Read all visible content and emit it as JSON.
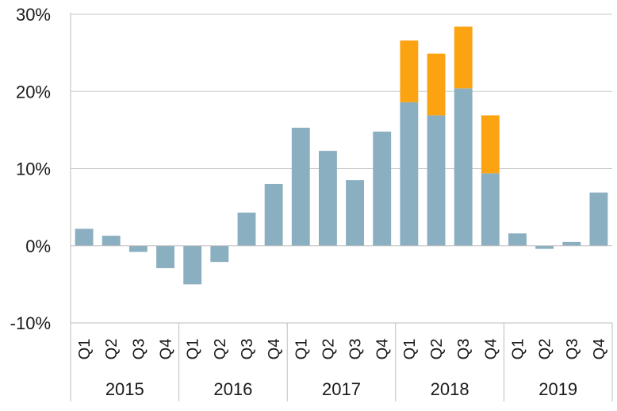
{
  "chart_data": {
    "type": "bar",
    "stacked": true,
    "groups": [
      {
        "label": "2015",
        "quarters": [
          "Q1",
          "Q2",
          "Q3",
          "Q4"
        ]
      },
      {
        "label": "2016",
        "quarters": [
          "Q1",
          "Q2",
          "Q3",
          "Q4"
        ]
      },
      {
        "label": "2017",
        "quarters": [
          "Q1",
          "Q2",
          "Q3",
          "Q4"
        ]
      },
      {
        "label": "2018",
        "quarters": [
          "Q1",
          "Q2",
          "Q3",
          "Q4"
        ]
      },
      {
        "label": "2019",
        "quarters": [
          "Q1",
          "Q2",
          "Q3",
          "Q4"
        ]
      }
    ],
    "series": [
      {
        "color": "#8aafc0",
        "values": [
          2.2,
          1.3,
          -0.8,
          -2.9,
          -5.0,
          -2.1,
          4.3,
          8.0,
          15.3,
          12.3,
          8.5,
          14.8,
          18.6,
          16.9,
          20.4,
          9.4,
          1.6,
          -0.4,
          0.5,
          6.9
        ]
      },
      {
        "color": "#fca311",
        "values": [
          0,
          0,
          0,
          0,
          0,
          0,
          0,
          0,
          0,
          0,
          0,
          0,
          8.0,
          8.0,
          8.0,
          7.5,
          0,
          0,
          0,
          0
        ]
      }
    ],
    "ylim": [
      -10,
      30
    ],
    "yticks": [
      -10,
      0,
      10,
      20,
      30
    ],
    "ytick_labels": [
      "-10%",
      "0%",
      "10%",
      "20%",
      "30%"
    ],
    "grid": true,
    "title": "",
    "xlabel": "",
    "ylabel": ""
  }
}
